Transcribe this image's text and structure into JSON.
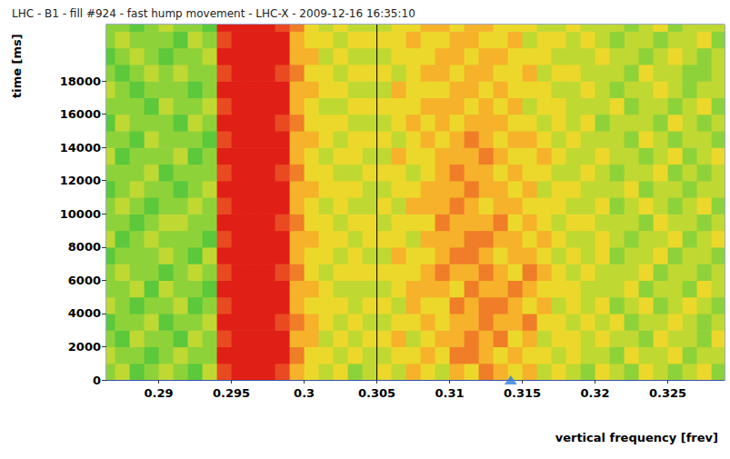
{
  "chart_data": {
    "type": "heatmap",
    "title": "LHC - B1 - fill #924 - fast hump movement - LHC-X - 2009-12-16 16:35:10",
    "x_label": "vertical frequency [frev]",
    "y_label": "time [ms]",
    "xlim": [
      0.2864,
      0.3289
    ],
    "ylim": [
      0,
      21400
    ],
    "xticks": [
      0.29,
      0.295,
      0.3,
      0.305,
      0.31,
      0.315,
      0.32,
      0.325
    ],
    "yticks": [
      0,
      2000,
      4000,
      6000,
      8000,
      10000,
      12000,
      14000,
      16000,
      18000
    ],
    "grid": false,
    "x_edges": [
      0.2864,
      0.287,
      0.288,
      0.289,
      0.29,
      0.291,
      0.292,
      0.293,
      0.294,
      0.295,
      0.296,
      0.297,
      0.298,
      0.299,
      0.3,
      0.301,
      0.302,
      0.303,
      0.304,
      0.305,
      0.306,
      0.307,
      0.308,
      0.309,
      0.31,
      0.311,
      0.312,
      0.313,
      0.314,
      0.315,
      0.316,
      0.317,
      0.318,
      0.319,
      0.32,
      0.321,
      0.322,
      0.323,
      0.324,
      0.325,
      0.326,
      0.327,
      0.328,
      0.3289
    ],
    "y_edges": [
      0,
      1000,
      2000,
      3000,
      4000,
      5000,
      6000,
      7000,
      8000,
      9000,
      10000,
      11000,
      12000,
      13000,
      14000,
      15000,
      16000,
      17000,
      18000,
      19000,
      20000,
      21000,
      21400
    ],
    "zlim": [
      0,
      9
    ],
    "cells": [
      [
        3,
        4,
        2,
        3,
        4,
        3,
        2,
        4,
        8,
        9,
        9,
        9,
        8,
        6,
        5,
        4,
        5,
        3,
        4,
        5,
        4,
        6,
        5,
        4,
        6,
        5,
        7,
        6,
        5,
        6,
        4,
        5,
        4,
        3,
        5,
        4,
        3,
        5,
        4,
        3,
        4,
        5,
        3
      ],
      [
        4,
        3,
        3,
        2,
        3,
        4,
        3,
        3,
        9,
        9,
        9,
        9,
        9,
        7,
        5,
        5,
        4,
        5,
        4,
        4,
        5,
        5,
        6,
        5,
        7,
        7,
        6,
        5,
        6,
        5,
        5,
        4,
        5,
        4,
        4,
        3,
        5,
        4,
        4,
        5,
        3,
        4,
        4
      ],
      [
        3,
        2,
        4,
        3,
        3,
        2,
        4,
        3,
        8,
        9,
        9,
        9,
        9,
        6,
        6,
        4,
        5,
        4,
        5,
        5,
        6,
        4,
        5,
        6,
        6,
        7,
        6,
        7,
        5,
        6,
        4,
        5,
        5,
        4,
        5,
        4,
        4,
        3,
        5,
        4,
        4,
        3,
        5
      ],
      [
        2,
        3,
        3,
        4,
        2,
        3,
        3,
        4,
        9,
        9,
        9,
        9,
        8,
        7,
        6,
        5,
        4,
        5,
        4,
        4,
        5,
        5,
        6,
        5,
        6,
        6,
        7,
        6,
        6,
        7,
        5,
        5,
        4,
        5,
        4,
        5,
        3,
        4,
        4,
        5,
        4,
        3,
        4
      ],
      [
        4,
        3,
        2,
        3,
        3,
        4,
        2,
        3,
        8,
        9,
        9,
        9,
        9,
        6,
        5,
        5,
        5,
        4,
        5,
        5,
        4,
        6,
        5,
        5,
        7,
        6,
        7,
        7,
        6,
        5,
        6,
        4,
        5,
        4,
        5,
        3,
        4,
        5,
        3,
        4,
        5,
        4,
        3
      ],
      [
        3,
        3,
        4,
        2,
        4,
        3,
        3,
        2,
        9,
        9,
        9,
        9,
        9,
        6,
        6,
        5,
        4,
        4,
        4,
        4,
        5,
        6,
        6,
        6,
        5,
        7,
        6,
        6,
        7,
        6,
        5,
        5,
        5,
        4,
        4,
        4,
        5,
        3,
        4,
        4,
        3,
        5,
        4
      ],
      [
        3,
        4,
        3,
        3,
        2,
        3,
        4,
        3,
        8,
        9,
        9,
        9,
        8,
        7,
        5,
        4,
        5,
        5,
        5,
        5,
        5,
        5,
        6,
        7,
        6,
        6,
        7,
        6,
        5,
        7,
        6,
        5,
        4,
        5,
        4,
        4,
        4,
        5,
        3,
        4,
        4,
        3,
        4
      ],
      [
        2,
        3,
        3,
        3,
        4,
        3,
        2,
        4,
        9,
        9,
        9,
        9,
        9,
        6,
        5,
        5,
        4,
        5,
        4,
        4,
        6,
        5,
        5,
        6,
        7,
        7,
        6,
        5,
        6,
        6,
        5,
        4,
        5,
        4,
        5,
        3,
        4,
        4,
        5,
        3,
        4,
        4,
        3
      ],
      [
        4,
        2,
        3,
        4,
        3,
        3,
        3,
        2,
        8,
        9,
        9,
        9,
        9,
        6,
        6,
        5,
        5,
        4,
        5,
        5,
        5,
        4,
        6,
        6,
        6,
        7,
        7,
        6,
        6,
        5,
        6,
        5,
        4,
        4,
        5,
        4,
        3,
        4,
        4,
        5,
        3,
        4,
        5
      ],
      [
        3,
        3,
        2,
        3,
        4,
        4,
        3,
        3,
        9,
        9,
        9,
        9,
        8,
        7,
        5,
        5,
        4,
        5,
        5,
        4,
        5,
        5,
        5,
        7,
        6,
        6,
        6,
        7,
        5,
        6,
        5,
        4,
        5,
        5,
        4,
        4,
        4,
        3,
        5,
        4,
        4,
        3,
        4
      ],
      [
        3,
        4,
        3,
        2,
        3,
        3,
        4,
        3,
        8,
        9,
        9,
        9,
        9,
        6,
        5,
        4,
        5,
        4,
        4,
        5,
        4,
        6,
        6,
        6,
        7,
        6,
        5,
        6,
        6,
        5,
        5,
        5,
        4,
        4,
        5,
        3,
        4,
        5,
        4,
        3,
        4,
        5,
        3
      ],
      [
        2,
        3,
        4,
        3,
        3,
        2,
        3,
        4,
        9,
        9,
        9,
        9,
        9,
        6,
        6,
        5,
        5,
        5,
        4,
        4,
        5,
        5,
        6,
        6,
        6,
        7,
        6,
        6,
        5,
        6,
        4,
        5,
        5,
        4,
        4,
        4,
        5,
        3,
        4,
        4,
        3,
        4,
        4
      ],
      [
        3,
        3,
        3,
        4,
        2,
        3,
        3,
        3,
        8,
        9,
        9,
        9,
        8,
        7,
        5,
        5,
        4,
        4,
        5,
        5,
        5,
        4,
        5,
        6,
        7,
        6,
        6,
        5,
        6,
        5,
        5,
        4,
        4,
        5,
        4,
        3,
        4,
        4,
        5,
        3,
        4,
        3,
        4
      ],
      [
        4,
        2,
        3,
        3,
        3,
        4,
        2,
        3,
        9,
        9,
        9,
        9,
        9,
        6,
        5,
        4,
        5,
        5,
        4,
        4,
        6,
        5,
        5,
        6,
        6,
        6,
        7,
        6,
        5,
        5,
        6,
        5,
        4,
        4,
        5,
        4,
        4,
        3,
        4,
        5,
        3,
        4,
        5
      ],
      [
        3,
        3,
        2,
        4,
        3,
        3,
        3,
        2,
        8,
        9,
        9,
        9,
        9,
        6,
        6,
        5,
        4,
        5,
        5,
        5,
        4,
        5,
        6,
        5,
        6,
        7,
        6,
        5,
        6,
        6,
        5,
        4,
        5,
        4,
        4,
        4,
        3,
        5,
        4,
        3,
        4,
        4,
        3
      ],
      [
        2,
        4,
        3,
        3,
        3,
        2,
        4,
        3,
        9,
        9,
        9,
        9,
        8,
        7,
        5,
        5,
        5,
        4,
        4,
        4,
        5,
        6,
        5,
        6,
        5,
        6,
        6,
        6,
        5,
        5,
        4,
        5,
        4,
        5,
        3,
        4,
        4,
        4,
        3,
        5,
        4,
        3,
        4
      ],
      [
        3,
        3,
        3,
        2,
        4,
        3,
        3,
        4,
        8,
        9,
        9,
        9,
        9,
        6,
        5,
        4,
        4,
        5,
        5,
        5,
        5,
        5,
        6,
        6,
        6,
        5,
        6,
        5,
        6,
        4,
        5,
        5,
        4,
        4,
        4,
        5,
        3,
        4,
        4,
        3,
        4,
        5,
        3
      ],
      [
        4,
        3,
        2,
        3,
        3,
        3,
        2,
        3,
        9,
        9,
        9,
        9,
        9,
        6,
        6,
        5,
        5,
        4,
        4,
        4,
        6,
        5,
        5,
        5,
        6,
        6,
        5,
        6,
        5,
        5,
        5,
        4,
        4,
        5,
        4,
        3,
        4,
        4,
        5,
        4,
        3,
        4,
        4
      ],
      [
        3,
        2,
        3,
        4,
        3,
        4,
        3,
        3,
        8,
        9,
        9,
        9,
        8,
        7,
        5,
        5,
        4,
        5,
        5,
        5,
        4,
        5,
        6,
        6,
        5,
        6,
        6,
        5,
        5,
        6,
        4,
        5,
        5,
        4,
        4,
        4,
        3,
        5,
        4,
        4,
        3,
        3,
        4
      ],
      [
        2,
        3,
        4,
        3,
        2,
        3,
        3,
        4,
        9,
        9,
        9,
        9,
        9,
        6,
        6,
        4,
        5,
        4,
        4,
        4,
        5,
        5,
        5,
        6,
        6,
        5,
        6,
        6,
        5,
        5,
        5,
        4,
        4,
        4,
        5,
        4,
        4,
        3,
        4,
        5,
        4,
        3,
        4
      ],
      [
        3,
        4,
        3,
        3,
        3,
        2,
        4,
        3,
        8,
        9,
        9,
        9,
        9,
        6,
        5,
        5,
        4,
        5,
        5,
        5,
        5,
        6,
        5,
        5,
        6,
        6,
        5,
        5,
        6,
        4,
        5,
        5,
        4,
        5,
        4,
        3,
        4,
        4,
        3,
        4,
        4,
        5,
        3
      ],
      [
        3,
        3,
        2,
        3,
        4,
        3,
        3,
        2,
        9,
        9,
        9,
        9,
        8,
        7,
        5,
        4,
        5,
        4,
        4,
        4,
        5,
        5,
        6,
        6,
        5,
        6,
        6,
        5,
        5,
        5,
        4,
        4,
        5,
        4,
        4,
        4,
        3,
        4,
        5,
        3,
        4,
        4,
        4
      ]
    ],
    "vlines": [
      0.305
    ],
    "x_marker": 0.3142
  }
}
